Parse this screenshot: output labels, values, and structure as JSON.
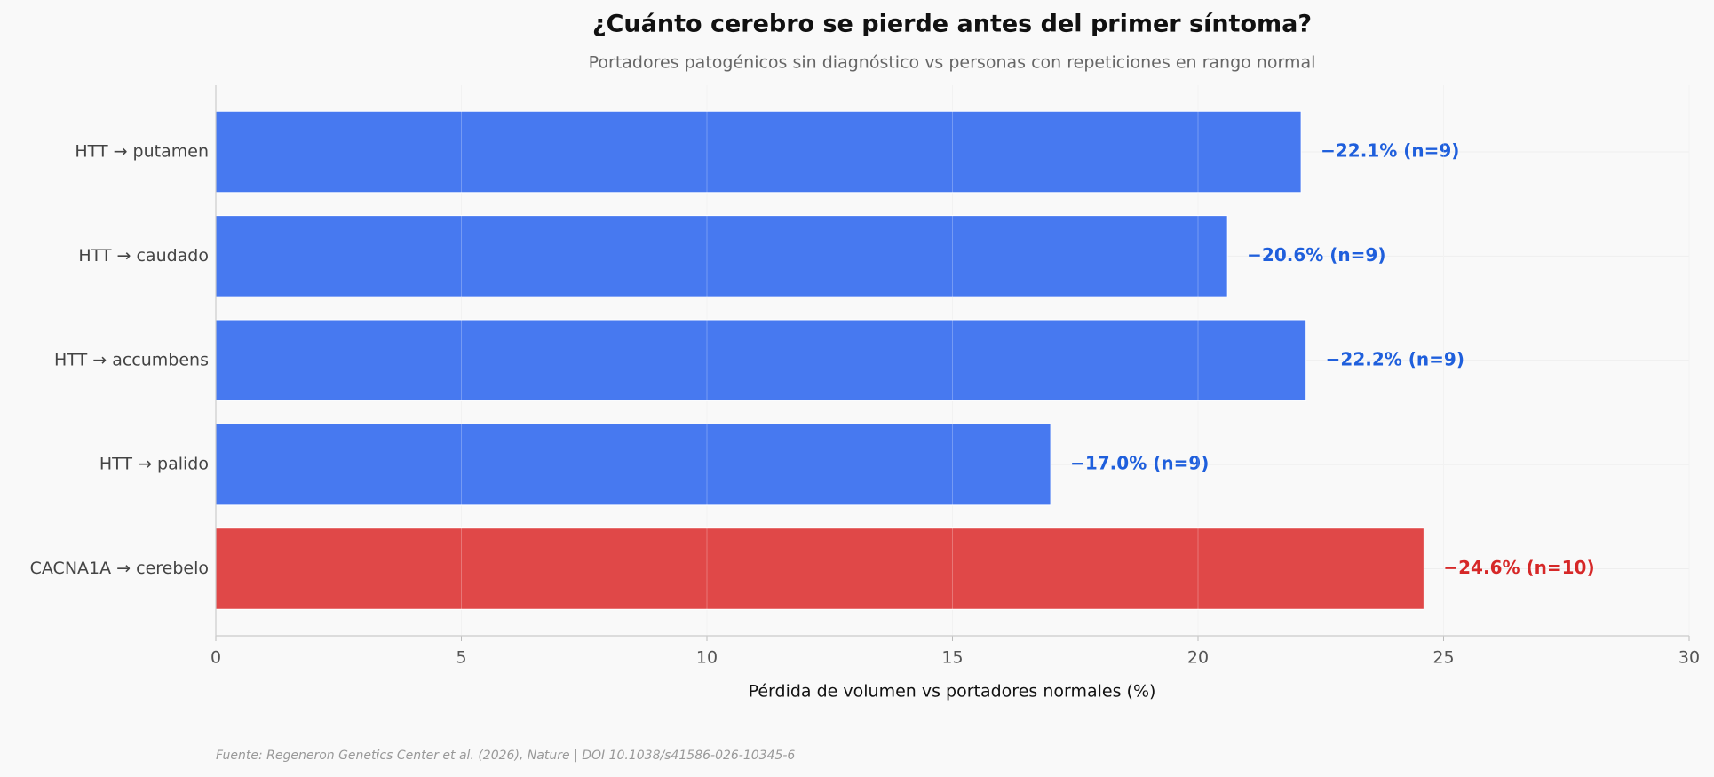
{
  "chart_data": {
    "type": "barh",
    "title": "¿Cuánto cerebro se pierde antes del primer síntoma?",
    "subtitle": "Portadores patogénicos sin diagnóstico vs personas con repeticiones en rango normal",
    "x_label": "Pérdida de volumen vs portadores normales (%)",
    "source": "Fuente: Regeneron Genetics Center et al. (2026), Nature | DOI 10.1038/s41586-026-10345-6",
    "categories": [
      "HTT → putamen",
      "HTT → caudado",
      "HTT → accumbens",
      "HTT → palido",
      "CACNA1A → cerebelo"
    ],
    "values": [
      22.1,
      20.6,
      22.2,
      17.0,
      24.6
    ],
    "value_labels": [
      "−22.1%  (n=9)",
      "−20.6%  (n=9)",
      "−22.2%  (n=9)",
      "−17.0%  (n=9)",
      "−24.6%  (n=10)"
    ],
    "colors": [
      "#4779f0",
      "#4779f0",
      "#4779f0",
      "#4779f0",
      "#e04848"
    ],
    "label_colors": [
      "#1f5fdc",
      "#1f5fdc",
      "#1f5fdc",
      "#1f5fdc",
      "#d62828"
    ],
    "xlim": [
      0,
      30
    ],
    "xticks": [
      0,
      5,
      10,
      15,
      20,
      25,
      30
    ],
    "grid": true
  }
}
